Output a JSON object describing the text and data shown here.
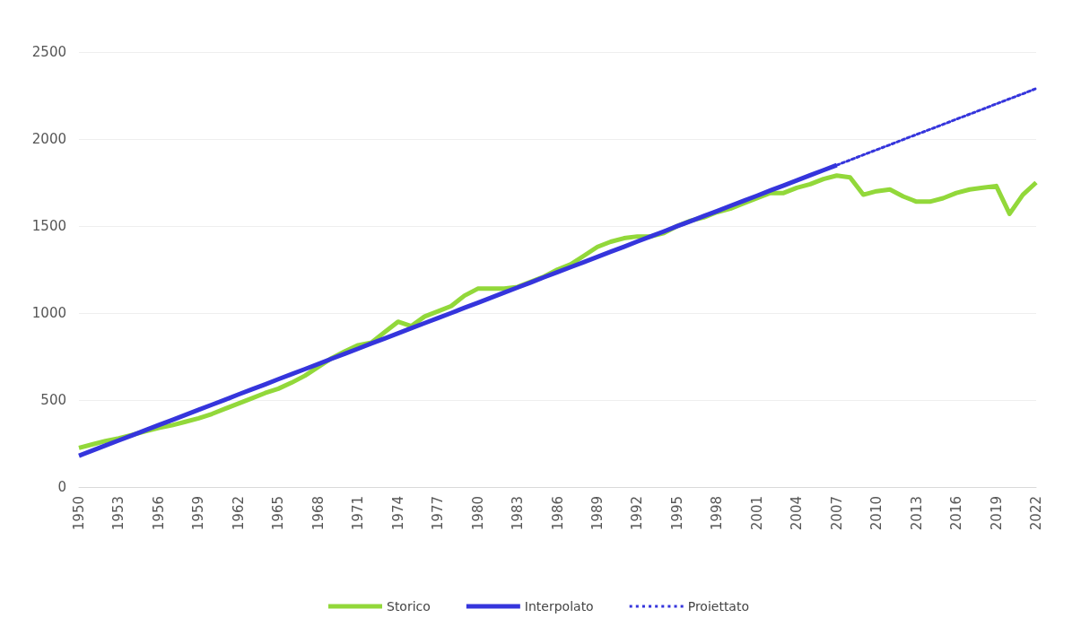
{
  "chart_data": {
    "type": "line",
    "categories": [
      "1950",
      null,
      null,
      "1953",
      null,
      null,
      "1956",
      null,
      null,
      "1959",
      null,
      null,
      "1962",
      null,
      null,
      "1965",
      null,
      null,
      "1968",
      null,
      null,
      "1971",
      null,
      null,
      "1974",
      null,
      null,
      "1977",
      null,
      null,
      "1980",
      null,
      null,
      "1983",
      null,
      null,
      "1986",
      null,
      null,
      "1989",
      null,
      null,
      "1992",
      null,
      null,
      "1995",
      null,
      null,
      "1998",
      null,
      null,
      "2001",
      null,
      null,
      "2004",
      null,
      null,
      "2007",
      null,
      null,
      "2010",
      null,
      null,
      "2013",
      null,
      null,
      "2016",
      null,
      null,
      "2019",
      null,
      null,
      "2022"
    ],
    "series": [
      {
        "name": "Storico",
        "color": "#92d83a",
        "line_style": "solid",
        "values": [
          225,
          245,
          265,
          280,
          300,
          320,
          340,
          355,
          375,
          395,
          420,
          450,
          480,
          510,
          540,
          565,
          600,
          640,
          690,
          740,
          780,
          815,
          830,
          890,
          950,
          925,
          980,
          1010,
          1040,
          1100,
          1140,
          1140,
          1140,
          1150,
          1180,
          1210,
          1250,
          1280,
          1330,
          1380,
          1410,
          1430,
          1440,
          1440,
          1460,
          1500,
          1530,
          1550,
          1580,
          1600,
          1630,
          1660,
          1690,
          1690,
          1720,
          1740,
          1770,
          1790,
          1780,
          1680,
          1700,
          1710,
          1670,
          1640,
          1640,
          1660,
          1690,
          1710,
          1720,
          1730,
          1570,
          1680,
          1750
        ]
      },
      {
        "name": "Interpolato",
        "color": "#3535dc",
        "line_style": "solid",
        "values": [
          180,
          209,
          239,
          268,
          297,
          327,
          356,
          385,
          414,
          444,
          473,
          502,
          532,
          561,
          590,
          620,
          649,
          678,
          707,
          737,
          766,
          795,
          825,
          854,
          883,
          913,
          942,
          971,
          1000,
          1030,
          1059,
          1088,
          1118,
          1147,
          1176,
          1206,
          1235,
          1264,
          1293,
          1323,
          1352,
          1381,
          1411,
          1440,
          1469,
          1499,
          1528,
          1557,
          1586,
          1616,
          1645,
          1674,
          1704,
          1733,
          1762,
          1792,
          1821,
          1850,
          null,
          null,
          null,
          null,
          null,
          null,
          null,
          null,
          null,
          null,
          null,
          null,
          null,
          null,
          null
        ]
      },
      {
        "name": "Proiettato",
        "color": "#3535dc",
        "line_style": "dotted",
        "values": [
          null,
          null,
          null,
          null,
          null,
          null,
          null,
          null,
          null,
          null,
          null,
          null,
          null,
          null,
          null,
          null,
          null,
          null,
          null,
          null,
          null,
          null,
          null,
          null,
          null,
          null,
          null,
          null,
          null,
          null,
          null,
          null,
          null,
          null,
          null,
          null,
          null,
          null,
          null,
          null,
          null,
          null,
          null,
          null,
          null,
          null,
          null,
          null,
          null,
          null,
          null,
          null,
          null,
          null,
          null,
          null,
          null,
          1850,
          1879,
          1909,
          1938,
          1967,
          1997,
          2026,
          2055,
          2084,
          2114,
          2143,
          2172,
          2202,
          2231,
          2260,
          2290
        ]
      }
    ],
    "ylim": [
      0,
      2500
    ],
    "yticks": [
      0,
      500,
      1000,
      1500,
      2000,
      2500
    ],
    "grid": "y",
    "legend": "bottom",
    "marker": "none"
  }
}
